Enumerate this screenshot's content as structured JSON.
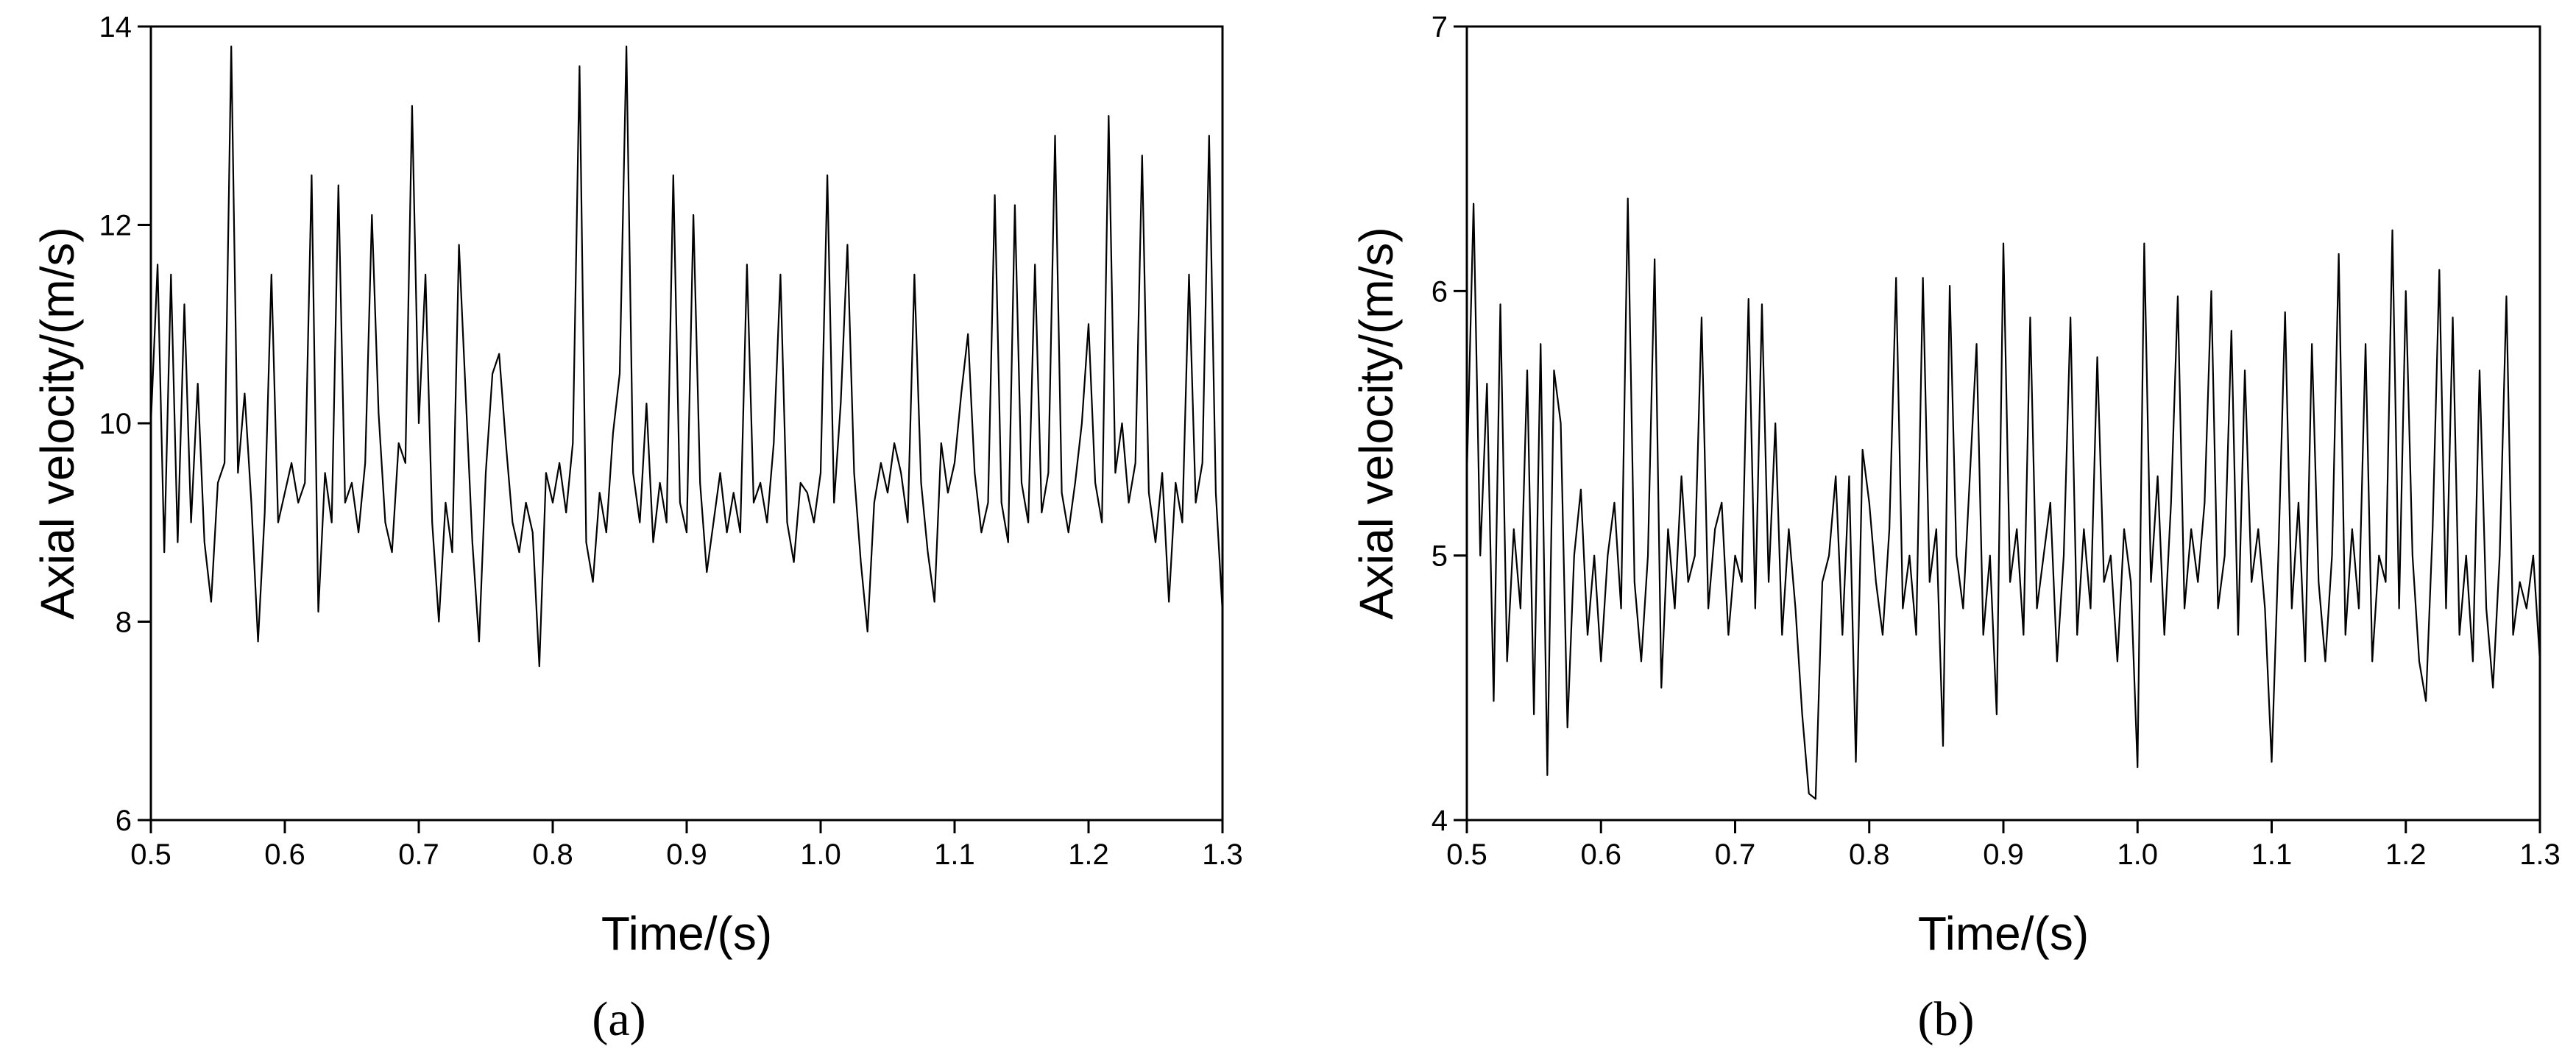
{
  "chart_data": [
    {
      "type": "line",
      "xlabel": "Time/(s)",
      "ylabel": "Axial velocity/(m/s)",
      "caption": "(a)",
      "color": "#000000",
      "xlim": [
        0.5,
        1.3
      ],
      "xticks": [
        0.5,
        0.6,
        0.7,
        0.8,
        0.9,
        {
          "value": 1,
          "label": "1.0"
        },
        1.1,
        1.2,
        1.3
      ],
      "ylim": [
        6,
        14
      ],
      "yticks": [
        6,
        8,
        10,
        12,
        14
      ],
      "x": [
        0.5,
        0.505,
        0.51,
        0.515,
        0.52,
        0.525,
        0.53,
        0.535,
        0.54,
        0.545,
        0.55,
        0.555,
        0.56,
        0.565,
        0.57,
        0.575,
        0.58,
        0.585,
        0.59,
        0.595,
        0.6,
        0.605,
        0.61,
        0.615,
        0.62,
        0.625,
        0.63,
        0.635,
        0.64,
        0.645,
        0.65,
        0.655,
        0.66,
        0.665,
        0.67,
        0.675,
        0.68,
        0.685,
        0.69,
        0.695,
        0.7,
        0.705,
        0.71,
        0.715,
        0.72,
        0.725,
        0.73,
        0.735,
        0.74,
        0.745,
        0.75,
        0.755,
        0.76,
        0.765,
        0.77,
        0.775,
        0.78,
        0.785,
        0.79,
        0.795,
        0.8,
        0.805,
        0.81,
        0.815,
        0.82,
        0.825,
        0.83,
        0.835,
        0.84,
        0.845,
        0.85,
        0.855,
        0.86,
        0.865,
        0.87,
        0.875,
        0.88,
        0.885,
        0.89,
        0.895,
        0.9,
        0.905,
        0.91,
        0.915,
        0.92,
        0.925,
        0.93,
        0.935,
        0.94,
        0.945,
        0.95,
        0.955,
        0.96,
        0.965,
        0.97,
        0.975,
        0.98,
        0.985,
        0.99,
        0.995,
        1.0,
        1.005,
        1.01,
        1.015,
        1.02,
        1.025,
        1.03,
        1.035,
        1.04,
        1.045,
        1.05,
        1.055,
        1.06,
        1.065,
        1.07,
        1.075,
        1.08,
        1.085,
        1.09,
        1.095,
        1.1,
        1.105,
        1.11,
        1.115,
        1.12,
        1.125,
        1.13,
        1.135,
        1.14,
        1.145,
        1.15,
        1.155,
        1.16,
        1.165,
        1.17,
        1.175,
        1.18,
        1.185,
        1.19,
        1.195,
        1.2,
        1.205,
        1.21,
        1.215,
        1.22,
        1.225,
        1.23,
        1.235,
        1.24,
        1.245,
        1.25,
        1.255,
        1.26,
        1.265,
        1.27,
        1.275,
        1.28,
        1.285,
        1.29,
        1.295,
        1.3
      ],
      "values": [
        10.0,
        11.6,
        8.7,
        11.5,
        8.8,
        11.2,
        9.0,
        10.4,
        8.8,
        8.2,
        9.4,
        9.6,
        13.8,
        9.5,
        10.3,
        9.2,
        7.8,
        9.1,
        11.5,
        9.0,
        9.3,
        9.6,
        9.2,
        9.4,
        12.5,
        8.1,
        9.5,
        9.0,
        12.4,
        9.2,
        9.4,
        8.9,
        9.6,
        12.1,
        10.1,
        9.0,
        8.7,
        9.8,
        9.6,
        13.2,
        10.0,
        11.5,
        9.0,
        8.0,
        9.2,
        8.7,
        11.8,
        10.3,
        8.8,
        7.8,
        9.5,
        10.5,
        10.7,
        9.8,
        9.0,
        8.7,
        9.2,
        8.9,
        7.55,
        9.5,
        9.2,
        9.6,
        9.1,
        9.8,
        13.6,
        8.8,
        8.4,
        9.3,
        8.9,
        9.9,
        10.5,
        13.8,
        9.5,
        9.0,
        10.2,
        8.8,
        9.4,
        9.0,
        12.5,
        9.2,
        8.9,
        12.1,
        9.4,
        8.5,
        9.0,
        9.5,
        8.9,
        9.3,
        8.9,
        11.6,
        9.2,
        9.4,
        9.0,
        9.8,
        11.5,
        9.0,
        8.6,
        9.4,
        9.3,
        9.0,
        9.5,
        12.5,
        9.2,
        10.2,
        11.8,
        9.5,
        8.6,
        7.9,
        9.2,
        9.6,
        9.3,
        9.8,
        9.5,
        9.0,
        11.5,
        9.4,
        8.7,
        8.2,
        9.8,
        9.3,
        9.6,
        10.3,
        10.9,
        9.5,
        8.9,
        9.2,
        12.3,
        9.2,
        8.8,
        12.2,
        9.4,
        9.0,
        11.6,
        9.1,
        9.5,
        12.9,
        9.3,
        8.9,
        9.4,
        10.0,
        11.0,
        9.4,
        9.0,
        13.1,
        9.5,
        10.0,
        9.2,
        9.6,
        12.7,
        9.3,
        8.8,
        9.5,
        8.2,
        9.4,
        9.0,
        11.5,
        9.2,
        9.6,
        12.9,
        9.3,
        8.1
      ]
    },
    {
      "type": "line",
      "xlabel": "Time/(s)",
      "ylabel": "Axial velocity/(m/s)",
      "caption": "(b)",
      "color": "#000000",
      "xlim": [
        0.5,
        1.3
      ],
      "xticks": [
        0.5,
        0.6,
        0.7,
        0.8,
        0.9,
        {
          "value": 1,
          "label": "1.0"
        },
        1.1,
        1.2,
        1.3
      ],
      "ylim": [
        4,
        7
      ],
      "yticks": [
        4,
        5,
        6,
        7
      ],
      "x": [
        0.5,
        0.505,
        0.51,
        0.515,
        0.52,
        0.525,
        0.53,
        0.535,
        0.54,
        0.545,
        0.55,
        0.555,
        0.56,
        0.565,
        0.57,
        0.575,
        0.58,
        0.585,
        0.59,
        0.595,
        0.6,
        0.605,
        0.61,
        0.615,
        0.62,
        0.625,
        0.63,
        0.635,
        0.64,
        0.645,
        0.65,
        0.655,
        0.66,
        0.665,
        0.67,
        0.675,
        0.68,
        0.685,
        0.69,
        0.695,
        0.7,
        0.705,
        0.71,
        0.715,
        0.72,
        0.725,
        0.73,
        0.735,
        0.74,
        0.745,
        0.75,
        0.755,
        0.76,
        0.765,
        0.77,
        0.775,
        0.78,
        0.785,
        0.79,
        0.795,
        0.8,
        0.805,
        0.81,
        0.815,
        0.82,
        0.825,
        0.83,
        0.835,
        0.84,
        0.845,
        0.85,
        0.855,
        0.86,
        0.865,
        0.87,
        0.875,
        0.88,
        0.885,
        0.89,
        0.895,
        0.9,
        0.905,
        0.91,
        0.915,
        0.92,
        0.925,
        0.93,
        0.935,
        0.94,
        0.945,
        0.95,
        0.955,
        0.96,
        0.965,
        0.97,
        0.975,
        0.98,
        0.985,
        0.99,
        0.995,
        1.0,
        1.005,
        1.01,
        1.015,
        1.02,
        1.025,
        1.03,
        1.035,
        1.04,
        1.045,
        1.05,
        1.055,
        1.06,
        1.065,
        1.07,
        1.075,
        1.08,
        1.085,
        1.09,
        1.095,
        1.1,
        1.105,
        1.11,
        1.115,
        1.12,
        1.125,
        1.13,
        1.135,
        1.14,
        1.145,
        1.15,
        1.155,
        1.16,
        1.165,
        1.17,
        1.175,
        1.18,
        1.185,
        1.19,
        1.195,
        1.2,
        1.205,
        1.21,
        1.215,
        1.22,
        1.225,
        1.23,
        1.235,
        1.24,
        1.245,
        1.25,
        1.255,
        1.26,
        1.265,
        1.27,
        1.275,
        1.28,
        1.285,
        1.29,
        1.295,
        1.3
      ],
      "values": [
        5.3,
        6.33,
        5.0,
        5.65,
        4.45,
        5.95,
        4.6,
        5.1,
        4.8,
        5.7,
        4.4,
        5.8,
        4.17,
        5.7,
        5.5,
        4.35,
        5.0,
        5.25,
        4.7,
        5.0,
        4.6,
        5.0,
        5.2,
        4.8,
        6.35,
        4.9,
        4.6,
        5.0,
        6.12,
        4.5,
        5.1,
        4.8,
        5.3,
        4.9,
        5.0,
        5.9,
        4.8,
        5.1,
        5.2,
        4.7,
        5.0,
        4.9,
        5.97,
        4.8,
        5.95,
        4.9,
        5.5,
        4.7,
        5.1,
        4.8,
        4.4,
        4.1,
        4.08,
        4.9,
        5.0,
        5.3,
        4.7,
        5.3,
        4.22,
        5.4,
        5.2,
        4.9,
        4.7,
        5.1,
        6.05,
        4.8,
        5.0,
        4.7,
        6.05,
        4.9,
        5.1,
        4.28,
        6.02,
        5.0,
        4.8,
        5.3,
        5.8,
        4.7,
        5.0,
        4.4,
        6.18,
        4.9,
        5.1,
        4.7,
        5.9,
        4.8,
        5.0,
        5.2,
        4.6,
        5.0,
        5.9,
        4.7,
        5.1,
        4.8,
        5.75,
        4.9,
        5.0,
        4.6,
        5.1,
        4.9,
        4.2,
        6.18,
        4.9,
        5.3,
        4.7,
        5.2,
        5.98,
        4.8,
        5.1,
        4.9,
        5.2,
        6.0,
        4.8,
        5.0,
        5.85,
        4.7,
        5.7,
        4.9,
        5.1,
        4.8,
        4.22,
        5.0,
        5.92,
        4.8,
        5.2,
        4.6,
        5.8,
        4.9,
        4.6,
        5.0,
        6.14,
        4.7,
        5.1,
        4.8,
        5.8,
        4.6,
        5.0,
        4.9,
        6.23,
        4.8,
        6.0,
        5.0,
        4.6,
        4.45,
        5.1,
        6.08,
        4.8,
        5.9,
        4.7,
        5.0,
        4.6,
        5.7,
        4.8,
        4.5,
        5.0,
        5.98,
        4.7,
        4.9,
        4.8,
        5.0,
        4.6
      ]
    }
  ]
}
